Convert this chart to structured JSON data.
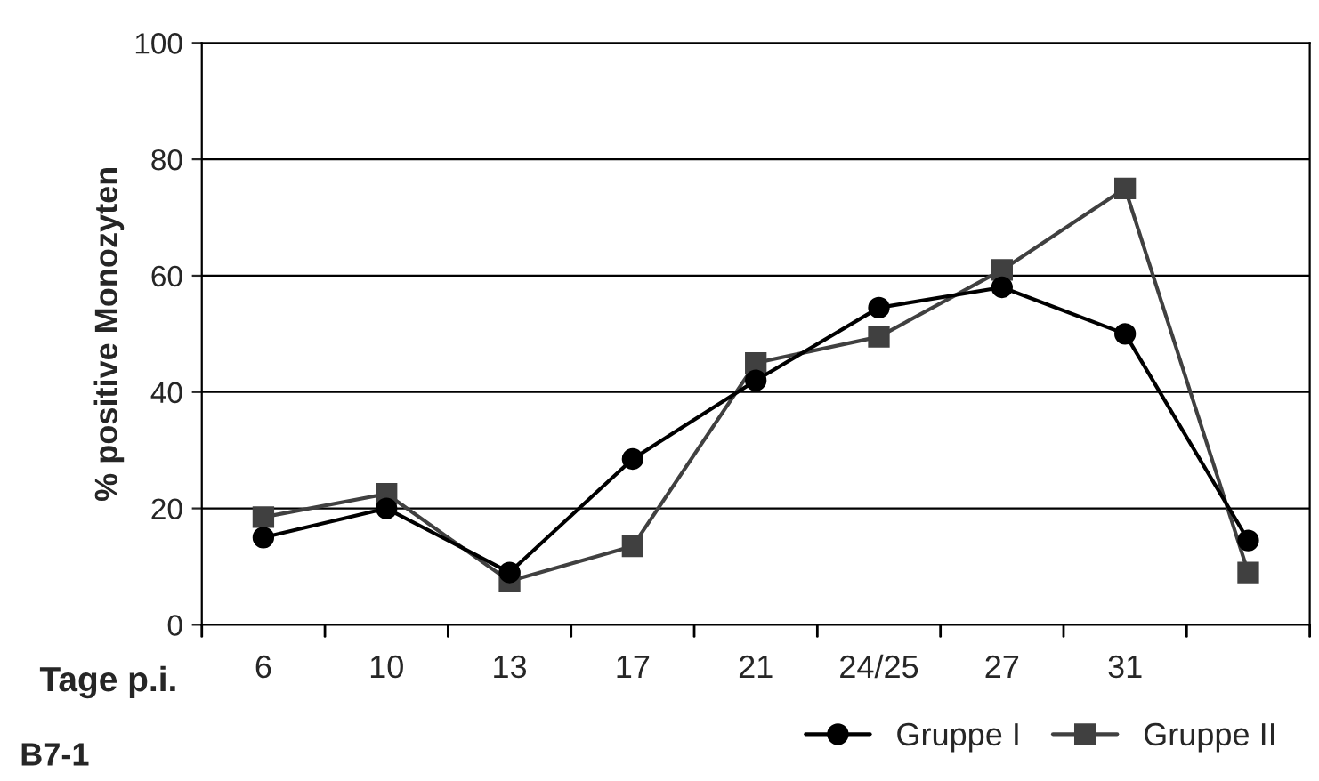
{
  "chart_data": {
    "type": "line",
    "ylabel": "% positive Monozyten",
    "xlabel": "Tage p.i.",
    "categories": [
      "6",
      "10",
      "13",
      "17",
      "21",
      "24/25",
      "27",
      "31",
      null
    ],
    "series": [
      {
        "name": "Gruppe I",
        "color": "#000000",
        "marker": "circle",
        "values": [
          15,
          20,
          9,
          28.5,
          42,
          54.5,
          58,
          50,
          14.5
        ]
      },
      {
        "name": "Gruppe II",
        "color": "#404040",
        "marker": "square",
        "values": [
          18.5,
          22.5,
          7.5,
          13.5,
          45,
          49.5,
          61,
          75,
          9
        ]
      }
    ],
    "ylim": [
      0,
      100
    ],
    "yticks": [
      0,
      20,
      40,
      60,
      80,
      100
    ],
    "grid": "y",
    "legend": "bottom right",
    "line_style": "solid",
    "annotations": [
      "B7-1"
    ]
  }
}
